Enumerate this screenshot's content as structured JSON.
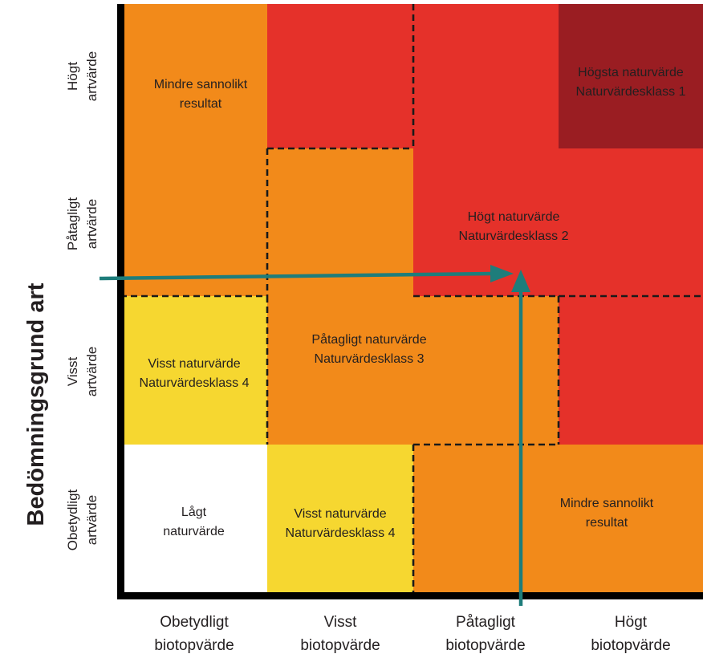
{
  "y_axis_title": "Bedömningsgrund art",
  "rows": [
    {
      "line1": "Högt",
      "line2": "artvärde"
    },
    {
      "line1": "Påtagligt",
      "line2": "artvärde"
    },
    {
      "line1": "Visst",
      "line2": "artvärde"
    },
    {
      "line1": "Obetydligt",
      "line2": "artvärde"
    }
  ],
  "columns": [
    {
      "line1": "Obetydligt",
      "line2": "biotopvärde"
    },
    {
      "line1": "Visst",
      "line2": "biotopvärde"
    },
    {
      "line1": "Påtagligt",
      "line2": "biotopvärde"
    },
    {
      "line1": "Högt",
      "line2": "biotopvärde"
    }
  ],
  "zone_labels": {
    "mindre_top": {
      "line1": "Mindre sannolikt",
      "line2": "resultat"
    },
    "hogsta": {
      "line1": "Högsta  naturvärde",
      "line2": "Naturvärdesklass 1"
    },
    "hogt": {
      "line1": "Högt  naturvärde",
      "line2": "Naturvärdesklass 2"
    },
    "patagligt": {
      "line1": "Påtagligt naturvärde",
      "line2": "Naturvärdesklass 3"
    },
    "visst_left": {
      "line1": "Visst naturvärde",
      "line2": "Naturvärdesklass 4"
    },
    "visst_bottom": {
      "line1": "Visst naturvärde",
      "line2": "Naturvärdesklass 4"
    },
    "lagt": {
      "line1": "Lågt",
      "line2": "naturvärde"
    },
    "mindre_bottom": {
      "line1": "Mindre sannolikt",
      "line2": "resultat"
    }
  },
  "colors": {
    "orange": "#f28a1a",
    "red": "#e5312a",
    "dark_red": "#9a1d22",
    "yellow": "#f6d730",
    "white": "#ffffff",
    "arrow": "#1e7d7b"
  }
}
